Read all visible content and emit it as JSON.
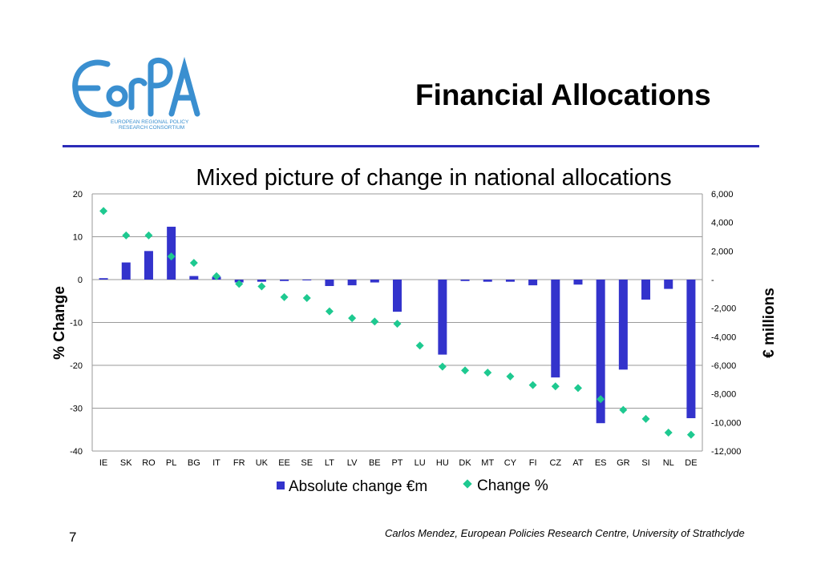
{
  "logo": {
    "wordmark": "EoRPA",
    "line1": "EUROPEAN REGIONAL POLICY",
    "line2": "RESEARCH CONSORTIUM",
    "color": "#3a8fd0"
  },
  "slide": {
    "title": "Financial Allocations",
    "page_number": "7",
    "credit": "Carlos Mendez, European Policies Research Centre, University of Strathclyde",
    "rule_color": "#2b2bb8"
  },
  "chart_data": {
    "type": "bar",
    "title": "Mixed picture of change in national allocations",
    "ylabel": "% Change",
    "y2label": "€ millions",
    "ylim": [
      -40,
      20
    ],
    "y2lim": [
      -12000,
      6000
    ],
    "yticks": [
      "20",
      "10",
      "0",
      "-10",
      "-20",
      "-30",
      "-40"
    ],
    "y2ticks": [
      "6,000",
      "4,000",
      "2,000",
      "-",
      "-2,000",
      "-4,000",
      "-6,000",
      "-8,000",
      "-10,000",
      "-12,000"
    ],
    "grid": true,
    "legend_position": "bottom",
    "categories": [
      "IE",
      "SK",
      "RO",
      "PL",
      "BG",
      "IT",
      "FR",
      "UK",
      "EE",
      "SE",
      "LT",
      "LV",
      "BE",
      "PT",
      "LU",
      "HU",
      "DK",
      "MT",
      "CY",
      "FI",
      "CZ",
      "AT",
      "ES",
      "GR",
      "SI",
      "NL",
      "DE"
    ],
    "series": [
      {
        "name": "Absolute change €m",
        "type": "bar",
        "axis": "right",
        "color": "#3333cc",
        "values": [
          100,
          1200,
          2000,
          3700,
          250,
          200,
          -200,
          -150,
          -100,
          -50,
          -450,
          -400,
          -200,
          -2250,
          0,
          -5250,
          -100,
          -150,
          -150,
          -400,
          -6850,
          -350,
          -10050,
          -6300,
          -1400,
          -650,
          -9700
        ]
      },
      {
        "name": "Change %",
        "type": "scatter",
        "axis": "left",
        "color": "#1ec990",
        "values": [
          16,
          10.3,
          10.3,
          5.4,
          3.9,
          0.8,
          -1.0,
          -1.6,
          -4.1,
          -4.3,
          -7.4,
          -9.0,
          -9.8,
          -10.3,
          -15.4,
          -20.3,
          -21.2,
          -21.7,
          -22.6,
          -24.6,
          -24.9,
          -25.3,
          -27.9,
          -30.4,
          -32.5,
          -35.7,
          -36.2
        ]
      }
    ]
  }
}
